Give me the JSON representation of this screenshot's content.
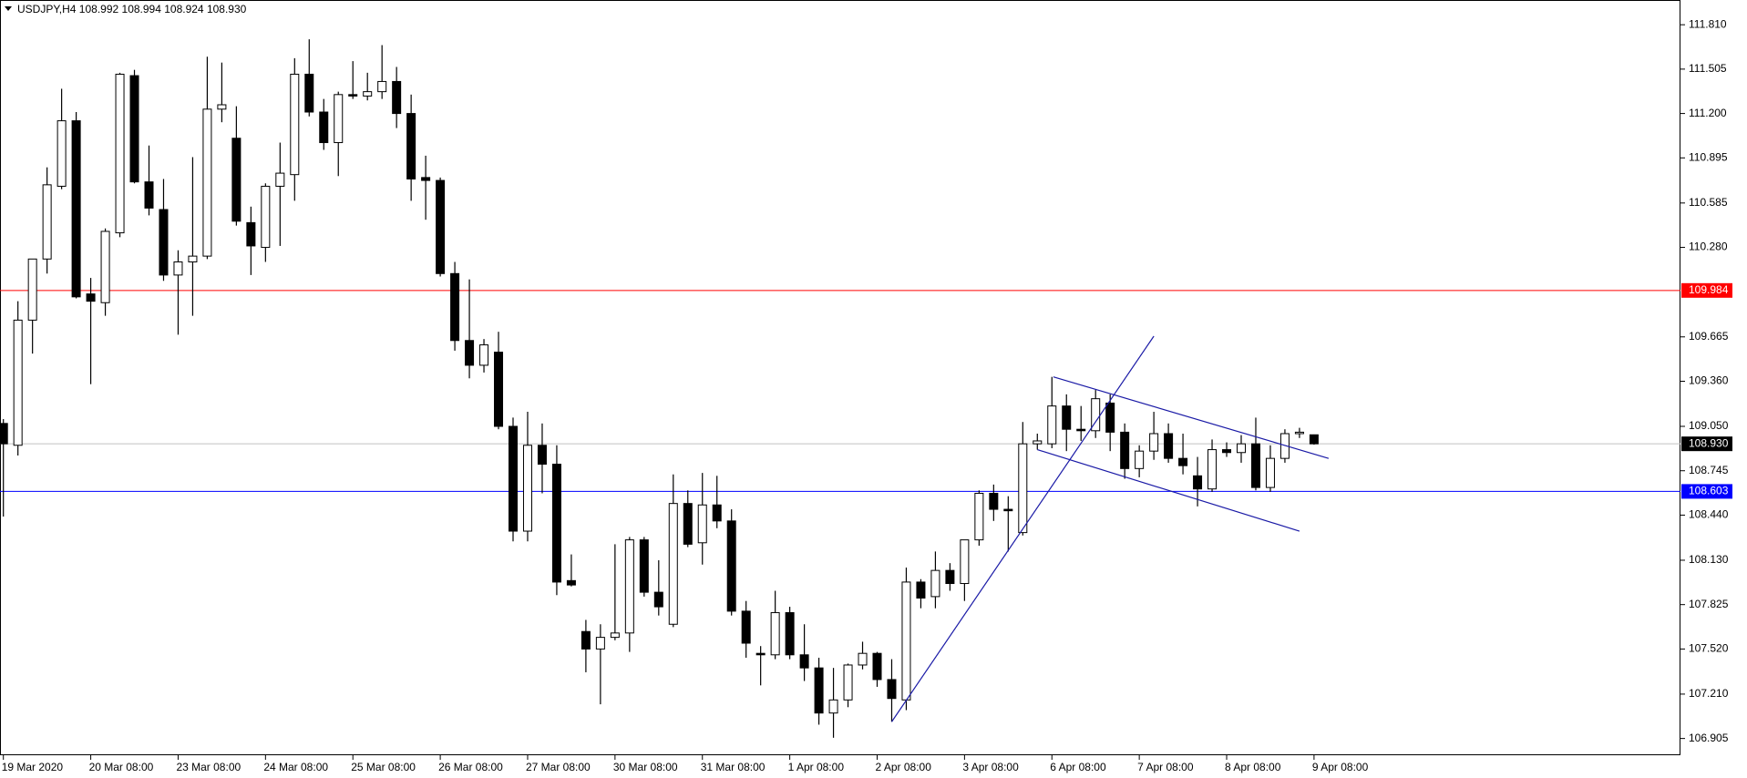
{
  "chart_data": {
    "type": "candlestick",
    "title": "USDJPY,H4  108.992 108.994 108.924 108.930",
    "categories": [
      "19 Mar 2020",
      null,
      null,
      null,
      null,
      null,
      "20 Mar 08:00",
      null,
      null,
      null,
      null,
      null,
      "23 Mar 08:00",
      null,
      null,
      null,
      null,
      null,
      "24 Mar 08:00",
      null,
      null,
      null,
      null,
      null,
      "25 Mar 08:00",
      null,
      null,
      null,
      null,
      null,
      "26 Mar 08:00",
      null,
      null,
      null,
      null,
      null,
      "27 Mar 08:00",
      null,
      null,
      null,
      null,
      null,
      "30 Mar 08:00",
      null,
      null,
      null,
      null,
      null,
      "31 Mar 08:00",
      null,
      null,
      null,
      null,
      null,
      "1 Apr 08:00",
      null,
      null,
      null,
      null,
      null,
      "2 Apr 08:00",
      null,
      null,
      null,
      null,
      null,
      "3 Apr 08:00",
      null,
      null,
      null,
      null,
      null,
      "6 Apr 08:00",
      null,
      null,
      null,
      null,
      null,
      "7 Apr 08:00",
      null,
      null,
      null,
      null,
      null,
      "8 Apr 08:00",
      null,
      null,
      null,
      null,
      null,
      "9 Apr 08:00"
    ],
    "open": [
      109.07,
      108.92,
      109.78,
      110.2,
      110.7,
      111.15,
      109.96,
      109.9,
      110.38,
      111.46,
      110.73,
      110.54,
      110.09,
      110.18,
      110.22,
      111.23,
      111.03,
      110.45,
      110.28,
      110.7,
      110.78,
      111.47,
      111.21,
      111.0,
      111.33,
      111.32,
      111.35,
      111.42,
      111.2,
      110.76,
      110.74,
      110.1,
      109.64,
      109.47,
      109.56,
      109.05,
      108.33,
      108.92,
      108.79,
      107.99,
      107.64,
      107.52,
      107.6,
      107.63,
      108.27,
      107.91,
      107.69,
      108.52,
      108.25,
      108.51,
      108.4,
      107.78,
      107.49,
      107.48,
      107.77,
      107.48,
      107.39,
      107.08,
      107.17,
      107.41,
      107.49,
      107.31,
      107.17,
      107.98,
      107.88,
      108.06,
      107.97,
      108.27,
      108.59,
      108.48,
      108.32,
      108.93,
      108.93,
      109.19,
      109.03,
      109.02,
      109.21,
      109.01,
      108.76,
      108.88,
      109.0,
      108.83,
      108.71,
      108.62,
      108.89,
      108.87,
      108.93,
      108.63,
      108.83,
      109.0,
      108.992
    ],
    "high": [
      109.1,
      109.91,
      110.2,
      110.83,
      111.37,
      111.21,
      110.07,
      110.41,
      111.48,
      111.5,
      110.98,
      110.75,
      110.26,
      110.9,
      111.59,
      111.55,
      111.25,
      110.56,
      110.72,
      111.0,
      111.58,
      111.71,
      111.3,
      111.35,
      111.56,
      111.48,
      111.67,
      111.52,
      111.33,
      110.91,
      110.76,
      110.18,
      110.06,
      109.65,
      109.7,
      109.11,
      109.15,
      109.07,
      108.92,
      108.17,
      107.72,
      107.69,
      108.24,
      108.29,
      108.29,
      108.13,
      108.72,
      108.61,
      108.73,
      108.71,
      108.48,
      107.85,
      107.54,
      107.92,
      107.81,
      107.69,
      107.46,
      107.39,
      107.42,
      107.57,
      107.5,
      107.45,
      108.08,
      108.0,
      108.19,
      108.11,
      108.27,
      108.61,
      108.65,
      108.57,
      109.08,
      109.0,
      109.39,
      109.27,
      109.19,
      109.3,
      109.27,
      109.07,
      108.92,
      109.15,
      109.07,
      109.0,
      108.84,
      108.96,
      108.94,
      108.99,
      109.11,
      108.92,
      109.03,
      109.04,
      108.994
    ],
    "low": [
      108.43,
      108.85,
      109.55,
      110.1,
      110.68,
      109.93,
      109.34,
      109.81,
      110.35,
      110.72,
      110.5,
      110.05,
      109.68,
      109.81,
      110.2,
      111.14,
      110.43,
      110.09,
      110.18,
      110.29,
      110.6,
      111.18,
      110.95,
      110.77,
      111.3,
      111.29,
      111.3,
      111.1,
      110.6,
      110.47,
      110.08,
      109.57,
      109.38,
      109.42,
      109.03,
      108.26,
      108.26,
      108.59,
      107.89,
      107.95,
      107.36,
      107.14,
      107.58,
      107.5,
      107.88,
      107.75,
      107.67,
      108.22,
      108.1,
      108.35,
      107.75,
      107.46,
      107.27,
      107.45,
      107.45,
      107.3,
      107.0,
      106.91,
      107.12,
      107.38,
      107.26,
      107.02,
      107.1,
      107.8,
      107.8,
      107.92,
      107.85,
      108.23,
      108.4,
      108.19,
      108.3,
      108.89,
      108.9,
      108.88,
      108.95,
      108.97,
      108.88,
      108.69,
      108.7,
      108.82,
      108.8,
      108.72,
      108.5,
      108.6,
      108.84,
      108.8,
      108.61,
      108.6,
      108.8,
      108.97,
      108.924
    ],
    "close": [
      108.93,
      109.78,
      110.2,
      110.71,
      111.15,
      109.94,
      109.91,
      110.39,
      111.47,
      110.73,
      110.55,
      110.09,
      110.18,
      110.22,
      111.23,
      111.26,
      110.46,
      110.29,
      110.7,
      110.79,
      111.47,
      111.21,
      111.0,
      111.33,
      111.32,
      111.35,
      111.42,
      111.2,
      110.75,
      110.74,
      110.1,
      109.64,
      109.47,
      109.61,
      109.05,
      108.33,
      108.92,
      108.79,
      107.98,
      107.96,
      107.52,
      107.6,
      107.63,
      108.27,
      107.91,
      107.81,
      108.52,
      108.24,
      108.51,
      108.4,
      107.78,
      107.56,
      107.48,
      107.77,
      107.48,
      107.39,
      107.08,
      107.17,
      107.41,
      107.49,
      107.31,
      107.18,
      107.98,
      107.87,
      108.06,
      107.97,
      108.27,
      108.59,
      108.48,
      108.47,
      108.93,
      108.95,
      109.19,
      109.03,
      109.02,
      109.24,
      109.01,
      108.76,
      108.88,
      109.0,
      108.83,
      108.78,
      108.62,
      108.89,
      108.87,
      108.93,
      108.63,
      108.83,
      109.0,
      109.01,
      108.93
    ],
    "up_color": "#ffffff",
    "down_color": "#000000",
    "ylim": [
      106.79,
      111.98
    ],
    "yticks": [
      {
        "value": 111.81,
        "label": "111.810"
      },
      {
        "value": 111.505,
        "label": "111.505"
      },
      {
        "value": 111.2,
        "label": "111.200"
      },
      {
        "value": 110.895,
        "label": "110.895"
      },
      {
        "value": 110.585,
        "label": "110.585"
      },
      {
        "value": 110.28,
        "label": "110.280"
      },
      {
        "value": 109.665,
        "label": "109.665"
      },
      {
        "value": 109.36,
        "label": "109.360"
      },
      {
        "value": 109.05,
        "label": "109.050"
      },
      {
        "value": 108.745,
        "label": "108.745"
      },
      {
        "value": 108.44,
        "label": "108.440"
      },
      {
        "value": 108.13,
        "label": "108.130"
      },
      {
        "value": 107.825,
        "label": "107.825"
      },
      {
        "value": 107.52,
        "label": "107.520"
      },
      {
        "value": 107.21,
        "label": "107.210"
      },
      {
        "value": 106.905,
        "label": "106.905"
      }
    ],
    "horizontal_lines": [
      {
        "value": 109.984,
        "label": "109.984",
        "color": "#ff0000",
        "label_background": "#ff0000"
      },
      {
        "value": 108.603,
        "label": "108.603",
        "color": "#0000ff",
        "label_background": "#0000ff"
      },
      {
        "value": 108.93,
        "label": "108.930",
        "color": "#c0c0c0",
        "label_background": "#000000"
      }
    ],
    "trendline_color": "#1a1aa6",
    "trendlines": [
      {
        "x": [
          61,
          79
        ],
        "y": [
          107.02,
          109.67
        ]
      },
      {
        "x": [
          72.1,
          91
        ],
        "y": [
          109.39,
          108.83
        ]
      },
      {
        "x": [
          71,
          89
        ],
        "y": [
          108.89,
          108.33
        ]
      }
    ]
  }
}
